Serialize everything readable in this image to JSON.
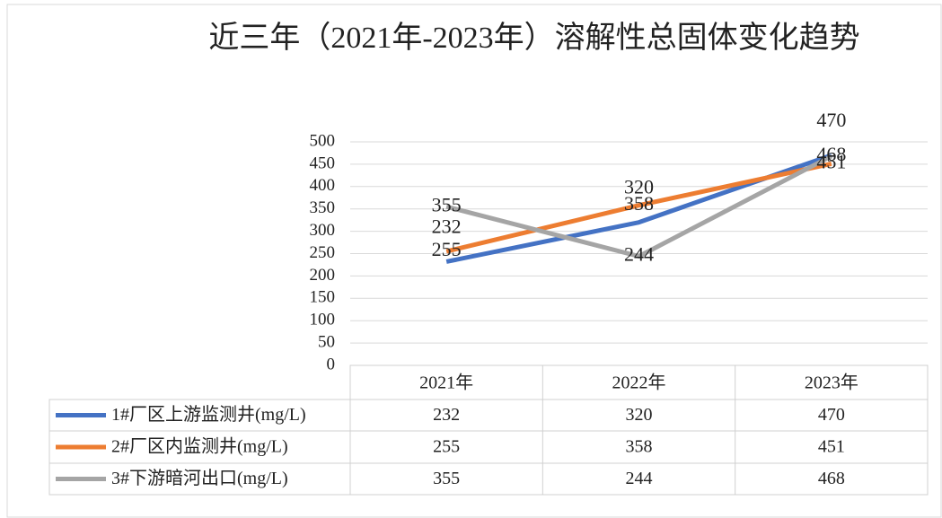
{
  "chart_data": {
    "type": "line",
    "title": "近三年（2021年-2023年）溶解性总固体变化趋势",
    "categories": [
      "2021年",
      "2022年",
      "2023年"
    ],
    "series": [
      {
        "name": "1#厂区上游监测井(mg/L)",
        "color": "#4472c4",
        "values": [
          232,
          320,
          470
        ]
      },
      {
        "name": "2#厂区内监测井(mg/L)",
        "color": "#ed7d31",
        "values": [
          255,
          358,
          451
        ]
      },
      {
        "name": "3#下游暗河出口(mg/L)",
        "color": "#a5a5a5",
        "values": [
          355,
          244,
          468
        ]
      }
    ],
    "ylim": [
      0,
      500
    ],
    "yticks": [
      0,
      50,
      100,
      150,
      200,
      250,
      300,
      350,
      400,
      450,
      500
    ],
    "grid": true,
    "data_labels": true,
    "data_table": true
  }
}
